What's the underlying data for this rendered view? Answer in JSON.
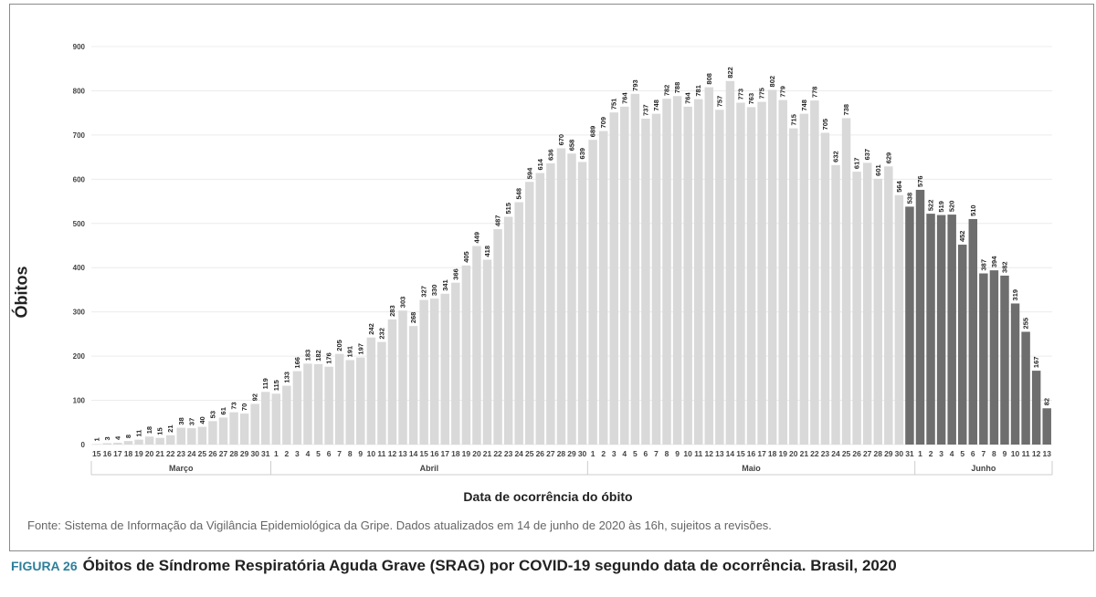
{
  "chart_data": {
    "type": "bar",
    "title": "",
    "xlabel": "Data de ocorrência do óbito",
    "ylabel": "Óbitos",
    "ylim": [
      0,
      900
    ],
    "yticks": [
      0,
      100,
      200,
      300,
      400,
      500,
      600,
      700,
      800,
      900
    ],
    "grid": true,
    "months": [
      {
        "name": "Março",
        "days": [
          "15",
          "16",
          "17",
          "18",
          "19",
          "20",
          "21",
          "22",
          "23",
          "24",
          "25",
          "26",
          "27",
          "28",
          "29",
          "30",
          "31"
        ],
        "values": [
          1,
          3,
          4,
          8,
          11,
          18,
          15,
          21,
          38,
          37,
          40,
          53,
          61,
          73,
          70,
          92,
          119
        ]
      },
      {
        "name": "Abril",
        "days": [
          "1",
          "2",
          "3",
          "4",
          "5",
          "6",
          "7",
          "8",
          "9",
          "10",
          "11",
          "12",
          "13",
          "14",
          "15",
          "16",
          "17",
          "18",
          "19",
          "20",
          "21",
          "22",
          "23",
          "24",
          "25",
          "26",
          "27",
          "28",
          "29",
          "30"
        ],
        "values": [
          115,
          133,
          166,
          183,
          182,
          176,
          205,
          191,
          197,
          242,
          232,
          283,
          303,
          268,
          327,
          330,
          341,
          366,
          405,
          449,
          418,
          487,
          515,
          548,
          594,
          614,
          636,
          670,
          658,
          639
        ]
      },
      {
        "name": "Maio",
        "days": [
          "1",
          "2",
          "3",
          "4",
          "5",
          "6",
          "7",
          "8",
          "9",
          "10",
          "11",
          "12",
          "13",
          "14",
          "15",
          "16",
          "17",
          "18",
          "19",
          "20",
          "21",
          "22",
          "23",
          "24",
          "25",
          "26",
          "27",
          "28",
          "29",
          "30",
          "31"
        ],
        "values": [
          689,
          709,
          751,
          764,
          793,
          737,
          748,
          782,
          788,
          764,
          781,
          808,
          757,
          822,
          773,
          763,
          775,
          802,
          779,
          715,
          748,
          778,
          705,
          632,
          738,
          617,
          637,
          601,
          629,
          564,
          538
        ]
      },
      {
        "name": "Junho",
        "days": [
          "1",
          "2",
          "3",
          "4",
          "5",
          "6",
          "7",
          "8",
          "9",
          "10",
          "11",
          "12",
          "13"
        ],
        "values": [
          576,
          522,
          519,
          520,
          452,
          510,
          387,
          394,
          382,
          319,
          255,
          167,
          82
        ]
      }
    ],
    "highlight_from": {
      "month": "Maio",
      "day": "31"
    },
    "colors": {
      "bar": "#d9d9d9",
      "bar_highlight": "#6e6e6e",
      "grid": "#ececec",
      "axis_text": "#444444"
    }
  },
  "source_text": "Fonte: Sistema de Informação da Vigilância Epidemiológica da Gripe. Dados atualizados em 14 de junho de 2020 às 16h, sujeitos a revisões.",
  "caption": {
    "label": "FIGURA 26",
    "text": "Óbitos de Síndrome Respiratória Aguda Grave (SRAG) por COVID-19 segundo data de ocorrência. Brasil, 2020"
  }
}
